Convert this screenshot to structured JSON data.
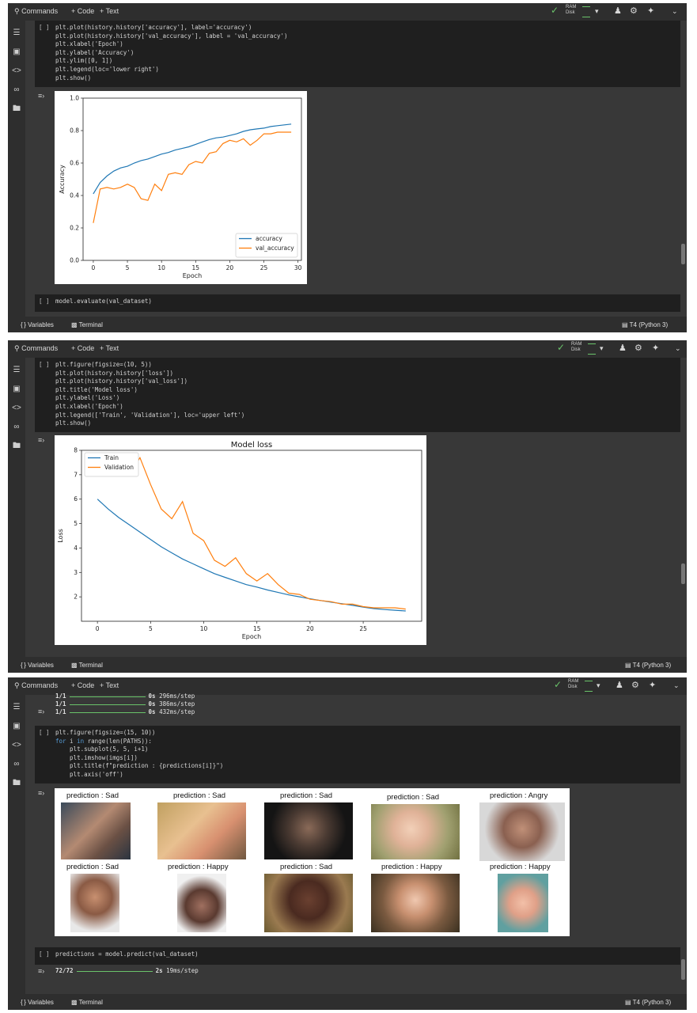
{
  "toolbar": {
    "commands": "Commands",
    "code": "+ Code",
    "text": "+ Text",
    "ram": "RAM",
    "disk": "Disk"
  },
  "statusbar": {
    "variables": "Variables",
    "terminal": "Terminal",
    "runtime": "T4 (Python 3)"
  },
  "panel1": {
    "cell1_lines": [
      "plt.plot(history.history['accuracy'], label='accuracy')",
      "plt.plot(history.history['val_accuracy'], label = 'val_accuracy')",
      "plt.xlabel('Epoch')",
      "plt.ylabel('Accuracy')",
      "plt.ylim([0, 1])",
      "plt.legend(loc='lower right')",
      "plt.show()"
    ],
    "cell2_lines": [
      "model.evaluate(val_dataset)"
    ],
    "bracket": "[ ]"
  },
  "panel2": {
    "cell_lines": [
      "plt.figure(figsize=(10, 5))",
      "plt.plot(history.history['loss'])",
      "plt.plot(history.history['val_loss'])",
      "plt.title('Model loss')",
      "plt.ylabel('Loss')",
      "plt.xlabel('Epoch')",
      "plt.legend(['Train', 'Validation'], loc='upper left')",
      "plt.show()"
    ]
  },
  "panel3": {
    "progress": [
      {
        "step": "1/1",
        "time": "0s",
        "rate": "296ms/step"
      },
      {
        "step": "1/1",
        "time": "0s",
        "rate": "386ms/step"
      },
      {
        "step": "1/1",
        "time": "0s",
        "rate": "432ms/step"
      }
    ],
    "cell_lines": [
      "plt.figure(figsize=(15, 10))",
      "for i in range(len(PATHS)):",
      "  plt.subplot(5, 5, i+1)",
      "  plt.imshow(imgs[i])",
      "  plt.title(f\"prediction : {predictions[i]}\")",
      "  plt.axis('off')"
    ],
    "predictions": [
      "prediction : Sad",
      "prediction : Sad",
      "prediction : Sad",
      "prediction : Sad",
      "prediction : Angry",
      "prediction : Sad",
      "prediction : Happy",
      "prediction : Sad",
      "prediction : Happy",
      "prediction : Happy"
    ],
    "cell2_lines": [
      "predictions = model.predict(val_dataset)"
    ],
    "final_progress": {
      "step": "72/72",
      "time": "2s",
      "rate": "19ms/step"
    }
  },
  "chart_data": [
    {
      "type": "line",
      "title": "",
      "xlabel": "Epoch",
      "ylabel": "Accuracy",
      "ylim": [
        0,
        1
      ],
      "xlim": [
        -1.5,
        30.5
      ],
      "xticks": [
        "0",
        "5",
        "10",
        "15",
        "20",
        "25",
        "30"
      ],
      "yticks": [
        "0.0",
        "0.2",
        "0.4",
        "0.6",
        "0.8",
        "1.0"
      ],
      "legend_loc": "lower right",
      "x": [
        0,
        1,
        2,
        3,
        4,
        5,
        6,
        7,
        8,
        9,
        10,
        11,
        12,
        13,
        14,
        15,
        16,
        17,
        18,
        19,
        20,
        21,
        22,
        23,
        24,
        25,
        26,
        27,
        28,
        29
      ],
      "series": [
        {
          "name": "accuracy",
          "color": "#1f77b4",
          "values": [
            0.41,
            0.48,
            0.52,
            0.55,
            0.57,
            0.58,
            0.6,
            0.615,
            0.625,
            0.64,
            0.655,
            0.665,
            0.68,
            0.69,
            0.7,
            0.715,
            0.73,
            0.745,
            0.755,
            0.76,
            0.77,
            0.78,
            0.795,
            0.805,
            0.81,
            0.815,
            0.825,
            0.83,
            0.835,
            0.84
          ]
        },
        {
          "name": "val_accuracy",
          "color": "#ff7f0e",
          "values": [
            0.23,
            0.44,
            0.45,
            0.44,
            0.45,
            0.47,
            0.45,
            0.38,
            0.37,
            0.47,
            0.43,
            0.53,
            0.54,
            0.53,
            0.59,
            0.61,
            0.6,
            0.66,
            0.67,
            0.72,
            0.74,
            0.73,
            0.75,
            0.71,
            0.74,
            0.78,
            0.78,
            0.79,
            0.79,
            0.79
          ]
        }
      ]
    },
    {
      "type": "line",
      "title": "Model loss",
      "xlabel": "Epoch",
      "ylabel": "Loss",
      "ylim": [
        1.0,
        8.0
      ],
      "xlim": [
        -1.5,
        30.5
      ],
      "xticks": [
        "0",
        "5",
        "10",
        "15",
        "20",
        "25"
      ],
      "yticks": [
        "2",
        "3",
        "4",
        "5",
        "6",
        "7",
        "8"
      ],
      "legend_loc": "upper left",
      "x": [
        0,
        1,
        2,
        3,
        4,
        5,
        6,
        7,
        8,
        9,
        10,
        11,
        12,
        13,
        14,
        15,
        16,
        17,
        18,
        19,
        20,
        21,
        22,
        23,
        24,
        25,
        26,
        27,
        28,
        29
      ],
      "series": [
        {
          "name": "Train",
          "color": "#1f77b4",
          "values": [
            6.0,
            5.6,
            5.25,
            4.95,
            4.65,
            4.35,
            4.05,
            3.8,
            3.55,
            3.35,
            3.15,
            2.95,
            2.8,
            2.65,
            2.5,
            2.4,
            2.28,
            2.18,
            2.08,
            2.0,
            1.92,
            1.85,
            1.78,
            1.72,
            1.65,
            1.58,
            1.52,
            1.48,
            1.45,
            1.42
          ]
        },
        {
          "name": "Validation",
          "color": "#ff7f0e",
          "values": [
            7.6,
            7.4,
            7.1,
            7.0,
            7.7,
            6.6,
            5.6,
            5.2,
            5.9,
            4.6,
            4.3,
            3.5,
            3.25,
            3.6,
            2.95,
            2.65,
            2.95,
            2.5,
            2.15,
            2.1,
            1.9,
            1.85,
            1.8,
            1.7,
            1.7,
            1.6,
            1.55,
            1.55,
            1.55,
            1.5
          ]
        }
      ]
    }
  ]
}
